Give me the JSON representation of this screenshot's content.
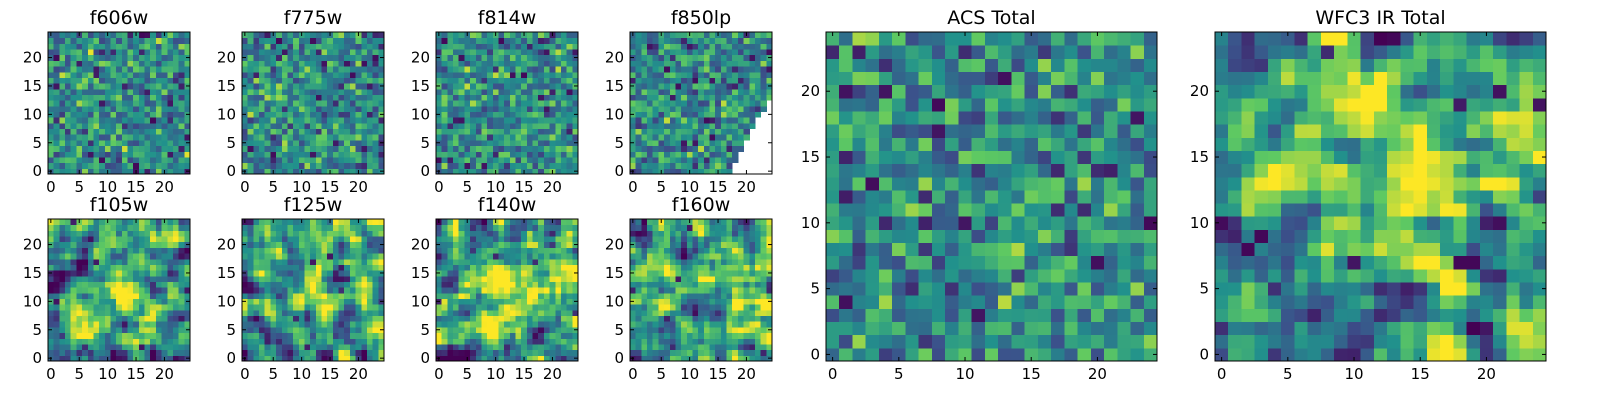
{
  "colormap": {
    "name": "viridis",
    "stops": [
      "#440154",
      "#3b528b",
      "#21918c",
      "#5ec962",
      "#fde725"
    ]
  },
  "chart_data": [
    {
      "type": "heatmap",
      "title": "f606w",
      "grid": [
        25,
        25
      ],
      "xlim": [
        -0.5,
        24.5
      ],
      "ylim": [
        -0.5,
        24.5
      ],
      "xticks": [
        0,
        5,
        10,
        15,
        20
      ],
      "xtick_labels": [
        "0",
        "5",
        "10",
        "15",
        "20"
      ],
      "yticks": [
        0,
        5,
        10,
        15,
        20
      ],
      "ytick_labels": [
        "0",
        "5",
        "10",
        "15",
        "20"
      ],
      "description": "noise-like pixel values, mostly green-yellow with scattered dark outliers",
      "seed": 11,
      "kind": "noise"
    },
    {
      "type": "heatmap",
      "title": "f775w",
      "grid": [
        25,
        25
      ],
      "xlim": [
        -0.5,
        24.5
      ],
      "ylim": [
        -0.5,
        24.5
      ],
      "xticks": [
        0,
        5,
        10,
        15,
        20
      ],
      "xtick_labels": [
        "0",
        "5",
        "10",
        "15",
        "20"
      ],
      "yticks": [
        0,
        5,
        10,
        15,
        20
      ],
      "ytick_labels": [
        "0",
        "5",
        "10",
        "15",
        "20"
      ],
      "description": "noise-like pixel values with a few dark outlier pixels",
      "seed": 23,
      "kind": "noise"
    },
    {
      "type": "heatmap",
      "title": "f814w",
      "grid": [
        25,
        25
      ],
      "xlim": [
        -0.5,
        24.5
      ],
      "ylim": [
        -0.5,
        24.5
      ],
      "xticks": [
        0,
        5,
        10,
        15,
        20
      ],
      "xtick_labels": [
        "0",
        "5",
        "10",
        "15",
        "20"
      ],
      "yticks": [
        0,
        5,
        10,
        15,
        20
      ],
      "ytick_labels": [
        "0",
        "5",
        "10",
        "15",
        "20"
      ],
      "description": "noise-like pixel values",
      "seed": 37,
      "kind": "noise"
    },
    {
      "type": "heatmap",
      "title": "f850lp",
      "grid": [
        25,
        25
      ],
      "xlim": [
        -0.5,
        24.5
      ],
      "ylim": [
        -0.5,
        24.5
      ],
      "xticks": [
        0,
        5,
        10,
        15,
        20
      ],
      "xtick_labels": [
        "0",
        "5",
        "10",
        "15",
        "20"
      ],
      "yticks": [
        0,
        5,
        10,
        15,
        20
      ],
      "ytick_labels": [
        "0",
        "5",
        "10",
        "15",
        "20"
      ],
      "description": "noise-like pixel values; lower-right corner has no data (blank)",
      "seed": 53,
      "kind": "noise_masked"
    },
    {
      "type": "heatmap",
      "title": "f105w",
      "grid": [
        25,
        25
      ],
      "xlim": [
        -0.5,
        24.5
      ],
      "ylim": [
        -0.5,
        24.5
      ],
      "xticks": [
        0,
        5,
        10,
        15,
        20
      ],
      "xtick_labels": [
        "0",
        "5",
        "10",
        "15",
        "20"
      ],
      "yticks": [
        0,
        5,
        10,
        15,
        20
      ],
      "ytick_labels": [
        "0",
        "5",
        "10",
        "15",
        "20"
      ],
      "description": "smooth structure with a bright central blob near (12,12)",
      "seed": 67,
      "kind": "smooth",
      "blob": [
        12,
        12
      ]
    },
    {
      "type": "heatmap",
      "title": "f125w",
      "grid": [
        25,
        25
      ],
      "xlim": [
        -0.5,
        24.5
      ],
      "ylim": [
        -0.5,
        24.5
      ],
      "xticks": [
        0,
        5,
        10,
        15,
        20
      ],
      "xtick_labels": [
        "0",
        "5",
        "10",
        "15",
        "20"
      ],
      "yticks": [
        0,
        5,
        10,
        15,
        20
      ],
      "ytick_labels": [
        "0",
        "5",
        "10",
        "15",
        "20"
      ],
      "description": "smooth structure with a bright central blob",
      "seed": 79,
      "kind": "smooth",
      "blob": [
        12,
        12
      ]
    },
    {
      "type": "heatmap",
      "title": "f140w",
      "grid": [
        25,
        25
      ],
      "xlim": [
        -0.5,
        24.5
      ],
      "ylim": [
        -0.5,
        24.5
      ],
      "xticks": [
        0,
        5,
        10,
        15,
        20
      ],
      "xtick_labels": [
        "0",
        "5",
        "10",
        "15",
        "20"
      ],
      "yticks": [
        0,
        5,
        10,
        15,
        20
      ],
      "ytick_labels": [
        "0",
        "5",
        "10",
        "15",
        "20"
      ],
      "description": "smooth structure with a bright central blob",
      "seed": 97,
      "kind": "smooth",
      "blob": [
        12,
        13
      ]
    },
    {
      "type": "heatmap",
      "title": "f160w",
      "grid": [
        25,
        25
      ],
      "xlim": [
        -0.5,
        24.5
      ],
      "ylim": [
        -0.5,
        24.5
      ],
      "xticks": [
        0,
        5,
        10,
        15,
        20
      ],
      "xtick_labels": [
        "0",
        "5",
        "10",
        "15",
        "20"
      ],
      "yticks": [
        0,
        5,
        10,
        15,
        20
      ],
      "ytick_labels": [
        "0",
        "5",
        "10",
        "15",
        "20"
      ],
      "description": "smooth structure with a bright central blob and dark patches",
      "seed": 109,
      "kind": "smooth",
      "blob": [
        13,
        12
      ]
    },
    {
      "type": "heatmap",
      "title": "ACS Total",
      "grid": [
        25,
        25
      ],
      "xlim": [
        -0.5,
        24.5
      ],
      "ylim": [
        -0.5,
        24.5
      ],
      "xticks": [
        0,
        5,
        10,
        15,
        20
      ],
      "xtick_labels": [
        "0",
        "5",
        "10",
        "15",
        "20"
      ],
      "yticks": [
        0,
        5,
        10,
        15,
        20
      ],
      "ytick_labels": [
        "0",
        "5",
        "10",
        "15",
        "20"
      ],
      "description": "coadded ACS image, noise-like with scattered dark pixels",
      "seed": 131,
      "kind": "noise"
    },
    {
      "type": "heatmap",
      "title": "WFC3 IR Total",
      "grid": [
        25,
        25
      ],
      "xlim": [
        -0.5,
        24.5
      ],
      "ylim": [
        -0.5,
        24.5
      ],
      "xticks": [
        0,
        5,
        10,
        15,
        20
      ],
      "xtick_labels": [
        "0",
        "5",
        "10",
        "15",
        "20"
      ],
      "yticks": [
        0,
        5,
        10,
        15,
        20
      ],
      "ytick_labels": [
        "0",
        "5",
        "10",
        "15",
        "20"
      ],
      "description": "coadded WFC3 IR image, smooth with a bright source near (12,12) and dark patches near (3,9) and (18,7)",
      "seed": 149,
      "kind": "smooth",
      "blob": [
        13,
        12
      ],
      "dark_spots": [
        [
          3,
          9
        ],
        [
          2,
          8
        ],
        [
          18,
          7
        ],
        [
          19,
          7
        ],
        [
          13,
          24
        ]
      ]
    }
  ]
}
